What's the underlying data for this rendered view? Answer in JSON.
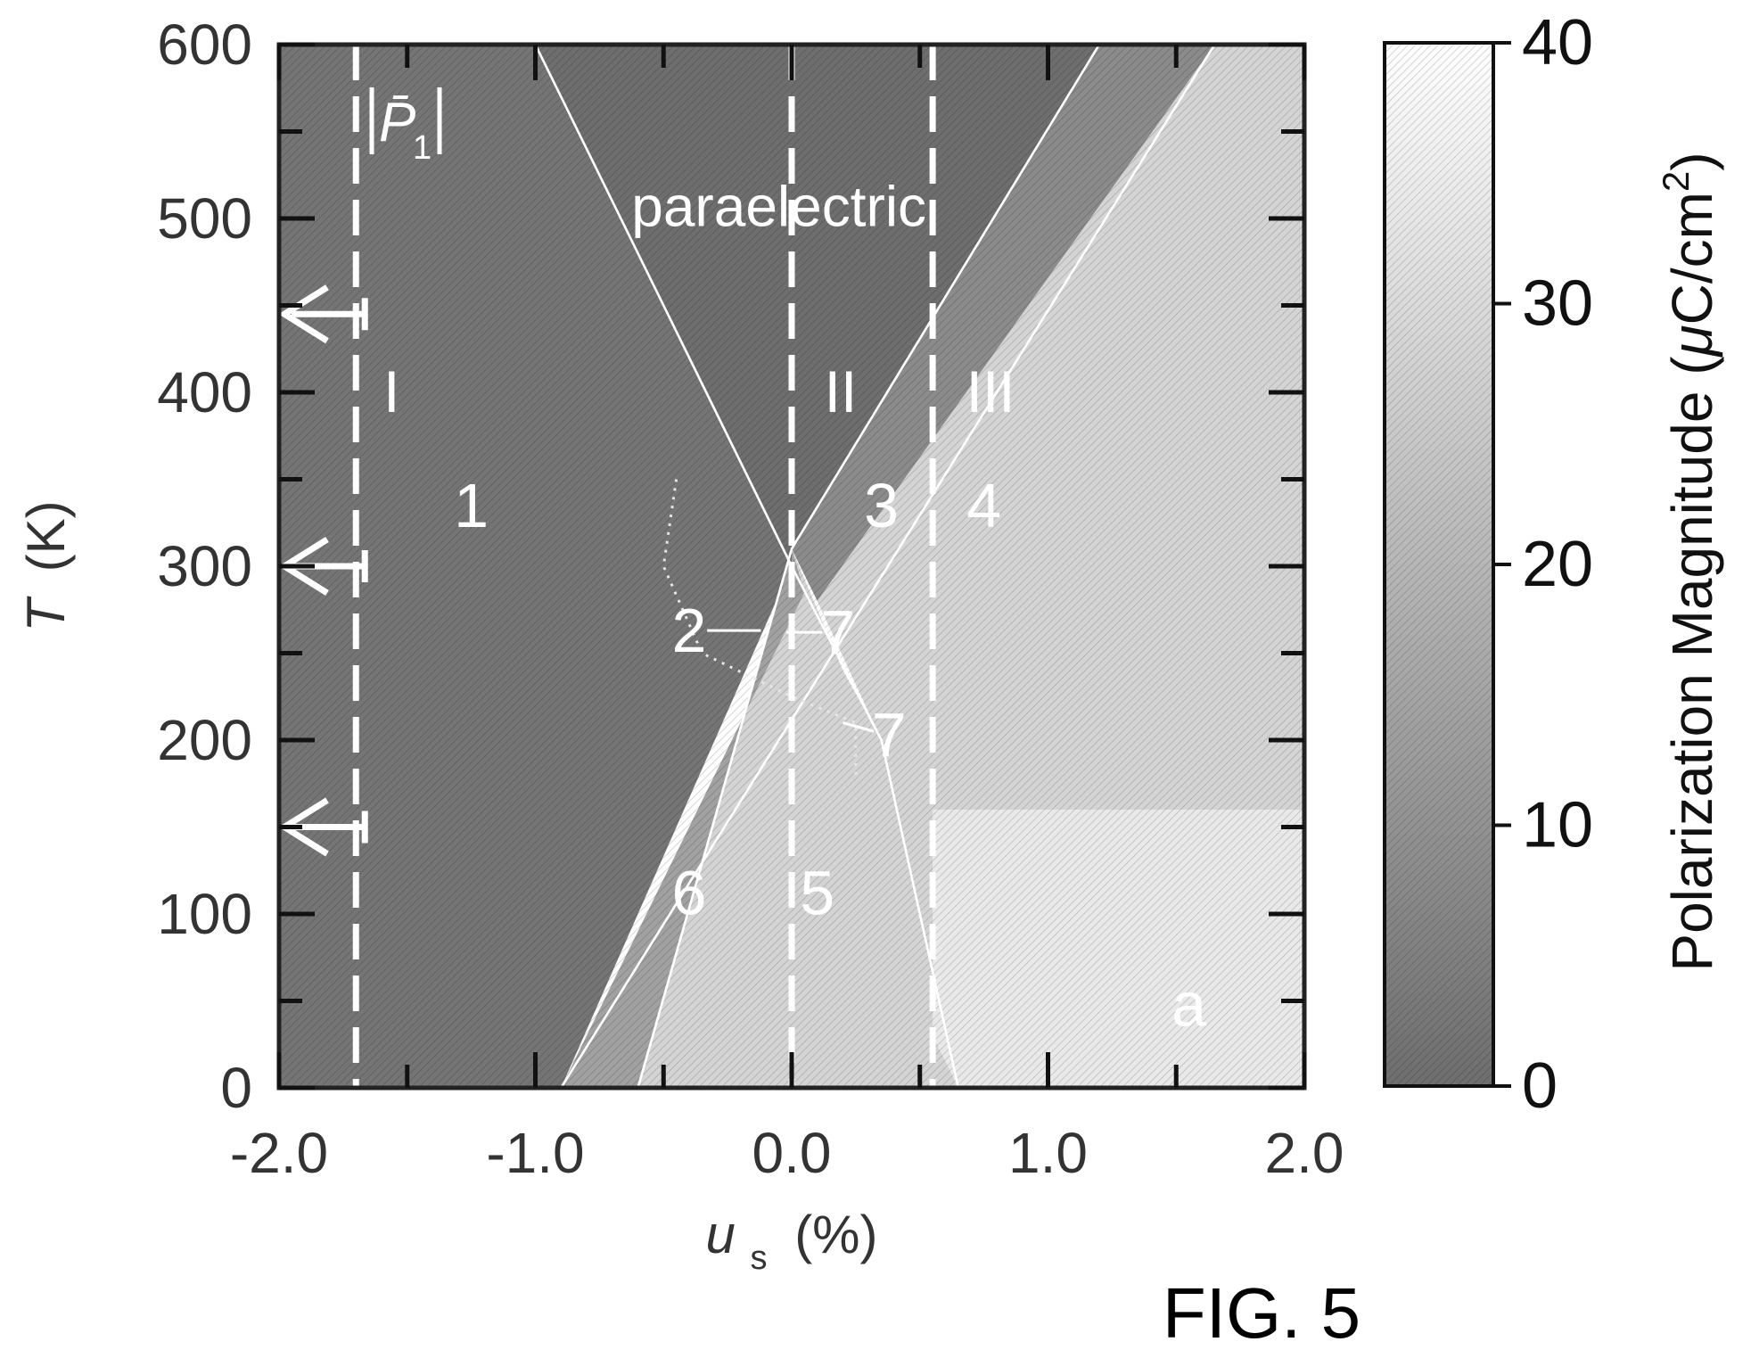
{
  "figure_label": "FIG. 5",
  "chart_data": {
    "type": "heatmap",
    "title": "",
    "xlabel_main": "u",
    "xlabel_sub": "s",
    "xlabel_unit": "(%)",
    "ylabel_main": "T",
    "ylabel_unit": "(K)",
    "xlim": [
      -2.0,
      2.0
    ],
    "ylim": [
      0,
      600
    ],
    "x_ticks": [
      -2.0,
      -1.0,
      0.0,
      1.0,
      2.0
    ],
    "x_tick_labels": [
      "-2.0",
      "-1.0",
      "0.0",
      "1.0",
      "2.0"
    ],
    "x_minor_ticks": [
      -1.5,
      -0.5,
      0.5,
      1.5
    ],
    "y_ticks": [
      0,
      100,
      200,
      300,
      400,
      500,
      600
    ],
    "y_tick_labels": [
      "0",
      "100",
      "200",
      "300",
      "400",
      "500",
      "600"
    ],
    "y_minor_ticks": [
      50,
      150,
      250,
      350,
      450,
      550
    ],
    "grid": false,
    "colorbar": {
      "label": "Polarization Magnitude (μC/cm²)",
      "label_prefix": "Polarization Magnitude (",
      "label_mu": "μ",
      "label_unit": "C/cm",
      "label_exp": "2",
      "label_suffix": ")",
      "range": [
        0,
        40
      ],
      "ticks": [
        0,
        10,
        20,
        30,
        40
      ],
      "tick_labels": [
        "0",
        "10",
        "20",
        "30",
        "40"
      ],
      "color_low": "#6e6e6e",
      "color_high": "#ffffff"
    },
    "boundaries": [
      {
        "name": "b1",
        "points": [
          [
            -1.0,
            600
          ],
          [
            0.0,
            300
          ],
          [
            0.35,
            200
          ],
          [
            0.65,
            0
          ]
        ]
      },
      {
        "name": "b2",
        "points": [
          [
            1.2,
            600
          ],
          [
            0.0,
            310
          ],
          [
            -0.6,
            0
          ]
        ]
      },
      {
        "name": "b3",
        "points": [
          [
            1.65,
            600
          ],
          [
            -0.9,
            0
          ]
        ]
      }
    ],
    "dotted_boundary": [
      [
        -0.45,
        350
      ],
      [
        -0.5,
        300
      ],
      [
        -0.35,
        250
      ],
      [
        0.0,
        225
      ],
      [
        0.25,
        210
      ],
      [
        0.25,
        180
      ]
    ],
    "vertical_guides": [
      {
        "x": -1.7,
        "roman": "I"
      },
      {
        "x": 0.0,
        "roman": "II"
      },
      {
        "x": 0.55,
        "roman": "III"
      }
    ],
    "arrow_temperatures": [
      445,
      300,
      150
    ],
    "annotations": [
      {
        "text": "paraelectric",
        "x": -0.05,
        "y": 505
      },
      {
        "text": "1",
        "x": -1.25,
        "y": 335
      },
      {
        "text": "2",
        "x": -0.4,
        "y": 263
      },
      {
        "text": "3",
        "x": 0.35,
        "y": 335
      },
      {
        "text": "4",
        "x": 0.75,
        "y": 335
      },
      {
        "text": "5",
        "x": 0.1,
        "y": 112
      },
      {
        "text": "6",
        "x": -0.4,
        "y": 112
      },
      {
        "text": "7",
        "x": 0.18,
        "y": 262
      },
      {
        "text": "7",
        "x": 0.38,
        "y": 203
      },
      {
        "text": "a",
        "x": 1.55,
        "y": 48
      }
    ],
    "legend_symbol": {
      "main": "P̄",
      "sub": "1",
      "x": -1.68,
      "y": 560
    },
    "regions": [
      {
        "label": "paraelectric",
        "polarization": 0
      },
      {
        "label": "1",
        "polarization": 2
      },
      {
        "label": "3",
        "polarization": 8
      },
      {
        "label": "6",
        "polarization": 14
      },
      {
        "label": "5",
        "polarization": 28
      },
      {
        "label": "4",
        "polarization": 28
      },
      {
        "label": "a",
        "polarization": 34
      }
    ]
  }
}
